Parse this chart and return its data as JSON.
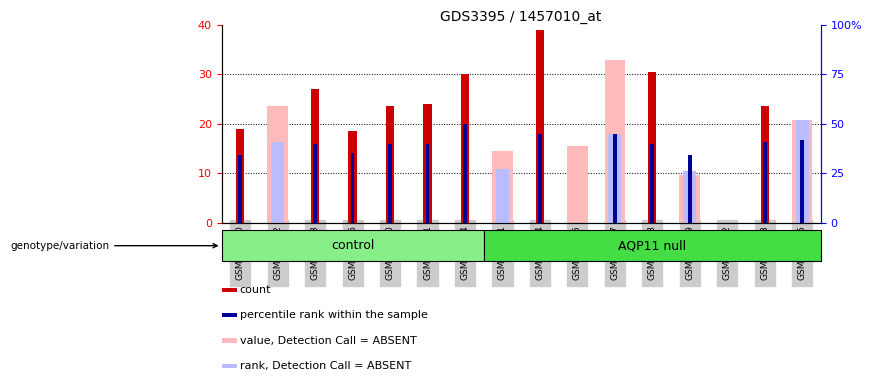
{
  "title": "GDS3395 / 1457010_at",
  "samples": [
    "GSM267980",
    "GSM267982",
    "GSM267983",
    "GSM267986",
    "GSM267990",
    "GSM267991",
    "GSM267994",
    "GSM267981",
    "GSM267984",
    "GSM267985",
    "GSM267987",
    "GSM267988",
    "GSM267989",
    "GSM267992",
    "GSM267993",
    "GSM267995"
  ],
  "groups": [
    "control",
    "control",
    "control",
    "control",
    "control",
    "control",
    "control",
    "AQP11 null",
    "AQP11 null",
    "AQP11 null",
    "AQP11 null",
    "AQP11 null",
    "AQP11 null",
    "AQP11 null",
    "AQP11 null",
    "AQP11 null"
  ],
  "count": [
    19,
    0,
    27,
    18.5,
    23.5,
    24,
    30,
    0,
    39,
    0,
    0,
    30.5,
    0,
    0,
    23.5,
    0
  ],
  "percentile_pct": [
    34,
    0,
    40,
    35,
    40,
    40,
    50,
    0,
    45,
    0,
    45,
    40,
    34,
    0,
    41,
    42
  ],
  "value_absent_pct": [
    0,
    59,
    0,
    0,
    0,
    0,
    0,
    36,
    0,
    39,
    82,
    0,
    24,
    0,
    0,
    52
  ],
  "rank_absent_pct": [
    0,
    41,
    0,
    0,
    0,
    0,
    0,
    27,
    0,
    0,
    45,
    0,
    26,
    0,
    0,
    52
  ],
  "ylim_left": [
    0,
    40
  ],
  "ylim_right": [
    0,
    100
  ],
  "yticks_left": [
    0,
    10,
    20,
    30,
    40
  ],
  "yticks_right": [
    0,
    25,
    50,
    75,
    100
  ],
  "color_count": "#cc0000",
  "color_percentile": "#000099",
  "color_value_absent": "#ffbbbb",
  "color_rank_absent": "#bbbbff",
  "color_control": "#88ee88",
  "color_aqp11": "#44dd44",
  "color_bg": "#cccccc",
  "group_control_count": 7,
  "group_aqp11_count": 9
}
